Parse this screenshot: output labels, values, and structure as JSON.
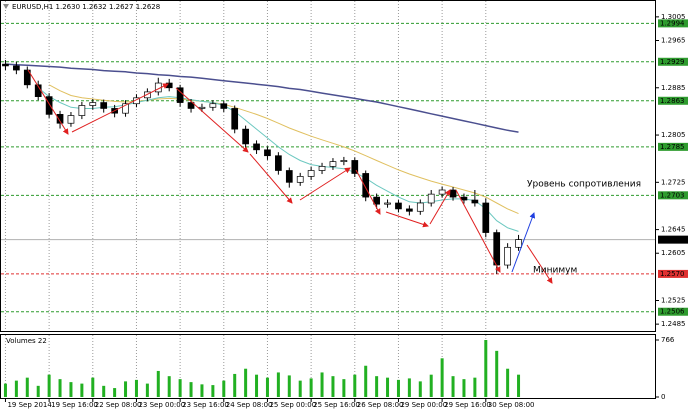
{
  "chart_data": [
    {
      "type": "candlestick",
      "title": "EURUSD,H1  1.2630 1.2632 1.2627 1.2628",
      "open": [
        1.2925,
        1.2922,
        1.2915,
        1.289,
        1.287,
        1.284,
        1.2825,
        1.2838,
        1.2855,
        1.286,
        1.285,
        1.2842,
        1.2858,
        1.2868,
        1.2878,
        1.2893,
        1.2885,
        1.286,
        1.285,
        1.2852,
        1.2858,
        1.285,
        1.2815,
        1.279,
        1.278,
        1.277,
        1.2745,
        1.2725,
        1.2735,
        1.2745,
        1.2752,
        1.276,
        1.2762,
        1.274,
        1.27,
        1.2688,
        1.269,
        1.268,
        1.2676,
        1.269,
        1.2705,
        1.2712,
        1.27,
        1.2695,
        1.269,
        1.264,
        1.2585,
        1.2615
      ],
      "high": [
        1.2932,
        1.2929,
        1.2921,
        1.2897,
        1.2876,
        1.2846,
        1.2844,
        1.2861,
        1.2866,
        1.2865,
        1.2856,
        1.2864,
        1.2874,
        1.2884,
        1.2902,
        1.29,
        1.289,
        1.2866,
        1.2858,
        1.2864,
        1.2863,
        1.2855,
        1.2821,
        1.2796,
        1.2786,
        1.2776,
        1.275,
        1.2741,
        1.2751,
        1.2758,
        1.2766,
        1.2768,
        1.2767,
        1.2745,
        1.2706,
        1.2696,
        1.2695,
        1.2686,
        1.2696,
        1.2712,
        1.2718,
        1.2717,
        1.2706,
        1.2712,
        1.2698,
        1.2645,
        1.2622,
        1.2636
      ],
      "low": [
        1.2915,
        1.2908,
        1.2884,
        1.2864,
        1.2834,
        1.2816,
        1.2819,
        1.2832,
        1.2848,
        1.2843,
        1.2835,
        1.2836,
        1.2852,
        1.2862,
        1.2872,
        1.2879,
        1.2853,
        1.2843,
        1.2844,
        1.2846,
        1.2844,
        1.2808,
        1.2783,
        1.2773,
        1.2763,
        1.2738,
        1.2716,
        1.2719,
        1.2729,
        1.2739,
        1.2746,
        1.2754,
        1.2734,
        1.2693,
        1.268,
        1.2682,
        1.2674,
        1.2669,
        1.267,
        1.2684,
        1.2699,
        1.2694,
        1.2689,
        1.2684,
        1.2632,
        1.257,
        1.2579,
        1.2609
      ],
      "close": [
        1.2922,
        1.2915,
        1.289,
        1.287,
        1.284,
        1.2825,
        1.2838,
        1.2855,
        1.286,
        1.285,
        1.2842,
        1.2858,
        1.2868,
        1.2878,
        1.2893,
        1.2885,
        1.286,
        1.285,
        1.2852,
        1.2858,
        1.285,
        1.2815,
        1.279,
        1.278,
        1.277,
        1.2745,
        1.2725,
        1.2735,
        1.2745,
        1.2752,
        1.276,
        1.2762,
        1.274,
        1.27,
        1.2688,
        1.269,
        1.268,
        1.2676,
        1.269,
        1.2705,
        1.2712,
        1.27,
        1.2695,
        1.269,
        1.264,
        1.2585,
        1.2615,
        1.2628
      ],
      "color_up": "#ffffff",
      "color_down": "#000000",
      "lines": [
        {
          "color": "#4b4f8f",
          "values": [
            1.2925,
            1.2924,
            1.2923,
            1.2922,
            1.2921,
            1.292,
            1.2918,
            1.2917,
            1.2916,
            1.2914,
            1.2913,
            1.2912,
            1.291,
            1.2909,
            1.2907,
            1.2906,
            1.2904,
            1.2903,
            1.2901,
            1.2899,
            1.2897,
            1.2895,
            1.2893,
            1.2891,
            1.2889,
            1.2887,
            1.2884,
            1.2882,
            1.2879,
            1.2876,
            1.2873,
            1.287,
            1.2867,
            1.2864,
            1.2861,
            1.2857,
            1.2853,
            1.2849,
            1.2845,
            1.2841,
            1.2837,
            1.2833,
            1.2829,
            1.2825,
            1.2821,
            1.2817,
            1.2813,
            1.281
          ]
        },
        {
          "color": "#e0c060",
          "values": [
            null,
            null,
            null,
            null,
            1.289,
            1.288,
            1.2872,
            1.2868,
            1.2866,
            1.2864,
            1.2862,
            1.2861,
            1.2862,
            1.2864,
            1.2866,
            1.2867,
            1.2866,
            1.2864,
            1.2862,
            1.286,
            1.2857,
            1.2852,
            1.2846,
            1.284,
            1.2833,
            1.2825,
            1.2817,
            1.281,
            1.2803,
            1.2797,
            1.2791,
            1.2785,
            1.2778,
            1.277,
            1.2762,
            1.2754,
            1.2746,
            1.2739,
            1.2733,
            1.2727,
            1.2722,
            1.2717,
            1.2712,
            1.2707,
            1.27,
            1.269,
            1.268,
            1.2672
          ]
        },
        {
          "color": "#6cc8c0",
          "values": [
            null,
            null,
            null,
            1.2885,
            1.287,
            1.286,
            1.2852,
            1.285,
            1.285,
            1.2852,
            1.2853,
            1.2856,
            1.286,
            1.2864,
            1.2868,
            1.287,
            1.2868,
            1.2865,
            1.2862,
            1.286,
            1.2855,
            1.2845,
            1.283,
            1.2815,
            1.28,
            1.2785,
            1.2772,
            1.2762,
            1.2755,
            1.2752,
            1.275,
            1.2748,
            1.2742,
            1.2732,
            1.272,
            1.271,
            1.27,
            1.2692,
            1.269,
            1.2692,
            1.2695,
            1.2697,
            1.2697,
            1.2694,
            1.268,
            1.266,
            1.2648,
            1.2642
          ]
        }
      ],
      "xlim": [
        -0.5,
        59.5
      ],
      "xticks": [
        {
          "value": 0,
          "label": "19 Sep 2014"
        },
        {
          "value": 4,
          "label": "19 Sep 16:00"
        },
        {
          "value": 8,
          "label": "22 Sep 08:00"
        },
        {
          "value": 12,
          "label": "23 Sep 00:00"
        },
        {
          "value": 16,
          "label": "23 Sep 16:00"
        },
        {
          "value": 20,
          "label": "24 Sep 08:00"
        },
        {
          "value": 24,
          "label": "25 Sep 00:00"
        },
        {
          "value": 28,
          "label": "25 Sep 16:00"
        },
        {
          "value": 32,
          "label": "26 Sep 08:00"
        },
        {
          "value": 36,
          "label": "29 Sep 00:00"
        },
        {
          "value": 40,
          "label": "29 Sep 16:00"
        },
        {
          "value": 44,
          "label": "30 Sep 08:00"
        }
      ],
      "ylim": [
        1.247,
        1.302
      ],
      "yticks": [
        1.3005,
        1.2965,
        1.2885,
        1.2805,
        1.2725,
        1.2645,
        1.2605,
        1.2525,
        1.2485
      ],
      "grid": true,
      "levels": [
        {
          "value": 1.2994,
          "color": "#2e9b2e"
        },
        {
          "value": 1.2929,
          "color": "#2e9b2e"
        },
        {
          "value": 1.2863,
          "color": "#2e9b2e"
        },
        {
          "value": 1.2785,
          "color": "#2e9b2e"
        },
        {
          "value": 1.2703,
          "color": "#2e9b2e"
        },
        {
          "value": 1.2628,
          "color": "#000000"
        },
        {
          "value": 1.257,
          "label": "1.2570",
          "color": "#e03030"
        },
        {
          "value": 1.2506,
          "color": "#2e9b2e"
        }
      ],
      "annotations": [
        "Уровень сопротивления",
        "Минимум"
      ]
    },
    {
      "type": "bar",
      "title": "Volumes 22",
      "values": [
        180,
        220,
        260,
        150,
        300,
        240,
        200,
        180,
        260,
        150,
        120,
        210,
        230,
        180,
        350,
        280,
        240,
        200,
        170,
        160,
        220,
        310,
        380,
        300,
        260,
        330,
        290,
        220,
        250,
        330,
        280,
        240,
        300,
        420,
        280,
        260,
        230,
        250,
        210,
        300,
        520,
        280,
        240,
        260,
        766,
        620,
        380,
        300
      ],
      "color": "#22b022",
      "ylim": [
        0,
        766
      ],
      "yticks": [
        0,
        766
      ]
    }
  ]
}
